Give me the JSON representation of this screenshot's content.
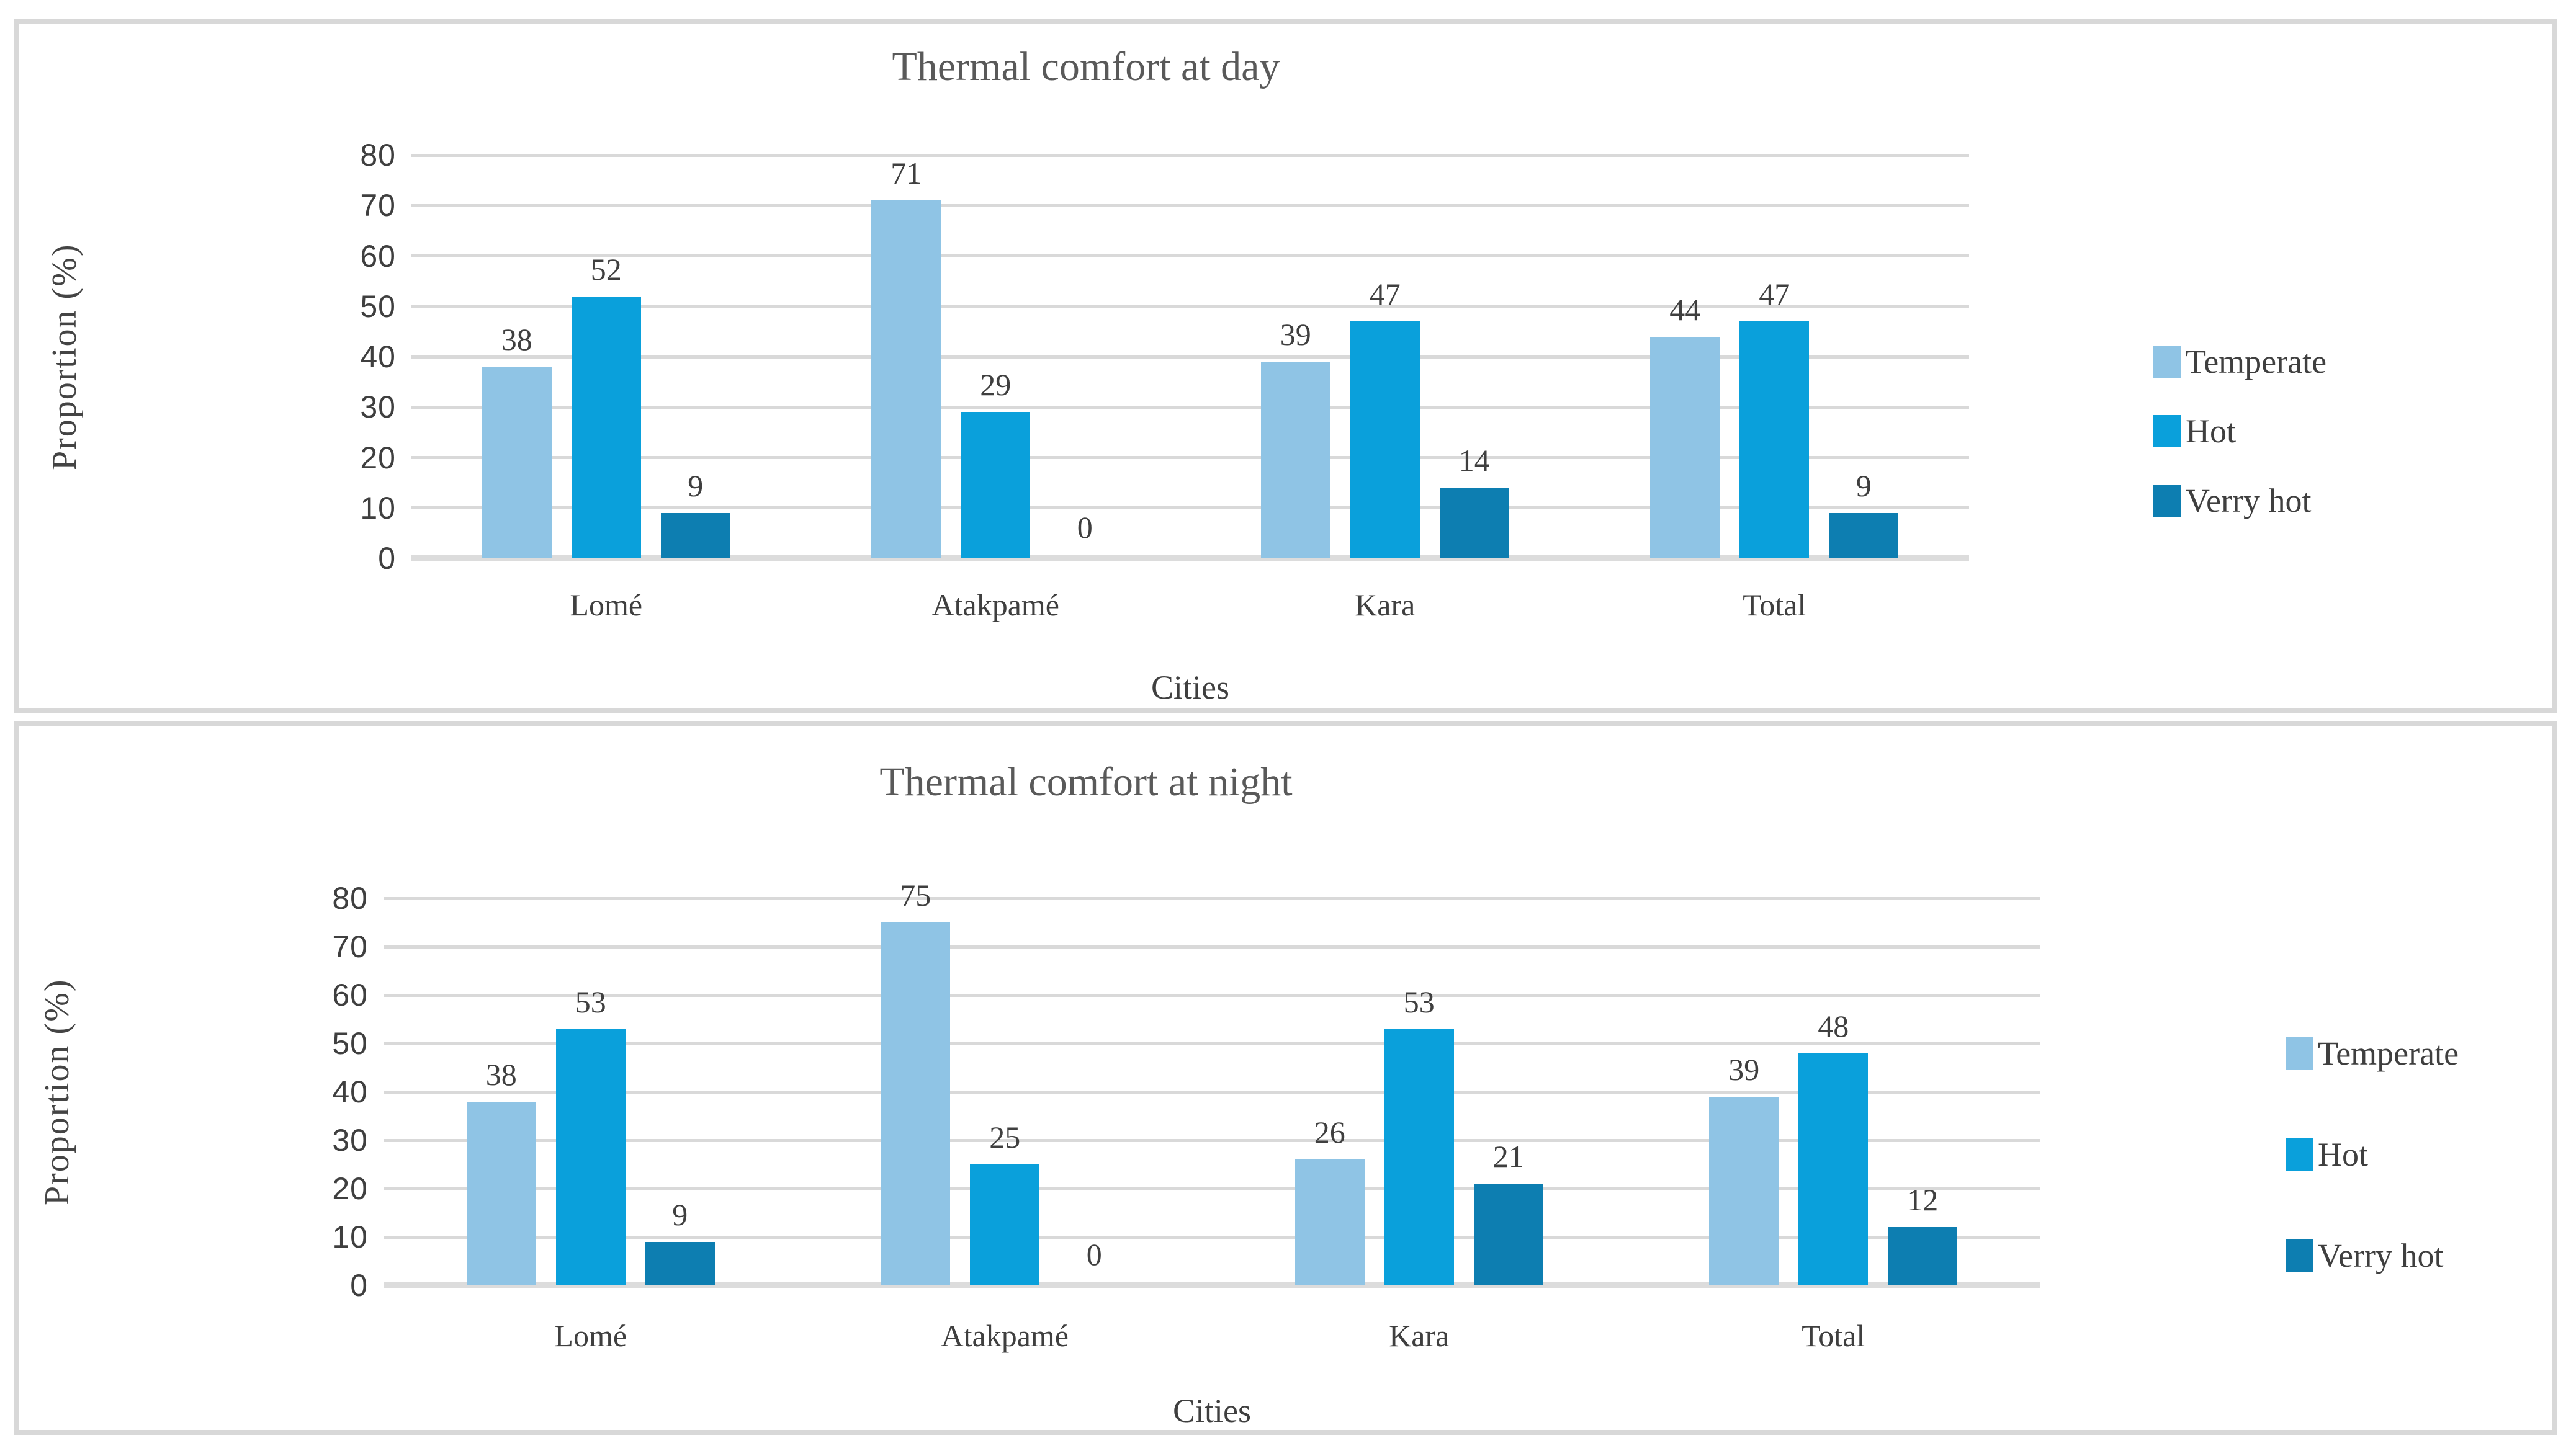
{
  "figure": {
    "background": "#FFFFFF",
    "panel_border_color": "#D8D8D8"
  },
  "style": {
    "grid_color": "#D9D9D9",
    "axis_line_color": "#DCDCDC",
    "title_color": "#595959",
    "text_color": "#3F3F3F"
  },
  "chart_data": [
    {
      "type": "bar",
      "title": "Thermal comfort at day",
      "xlabel": "Cities",
      "ylabel": "Proportion (%)",
      "categories": [
        "Lomé",
        "Atakpamé",
        "Kara",
        "Total"
      ],
      "series": [
        {
          "name": "Temperate",
          "color": "#8FC4E5",
          "values": [
            38,
            71,
            39,
            44
          ]
        },
        {
          "name": "Hot",
          "color": "#0AA0DB",
          "values": [
            52,
            29,
            47,
            47
          ]
        },
        {
          "name": "Verry hot",
          "color": "#0D7EB1",
          "values": [
            9,
            0,
            14,
            9
          ]
        }
      ],
      "ylim": [
        0,
        80
      ],
      "yticks": [
        0,
        10,
        20,
        30,
        40,
        50,
        60,
        70,
        80
      ],
      "grid": true,
      "legend_position": "right"
    },
    {
      "type": "bar",
      "title": "Thermal comfort at night",
      "xlabel": "Cities",
      "ylabel": "Proportion (%)",
      "categories": [
        "Lomé",
        "Atakpamé",
        "Kara",
        "Total"
      ],
      "series": [
        {
          "name": "Temperate",
          "color": "#8FC4E5",
          "values": [
            38,
            75,
            26,
            39
          ]
        },
        {
          "name": "Hot",
          "color": "#0AA0DB",
          "values": [
            53,
            25,
            53,
            48
          ]
        },
        {
          "name": "Verry hot",
          "color": "#0D7EB1",
          "values": [
            9,
            0,
            21,
            12
          ]
        }
      ],
      "ylim": [
        0,
        80
      ],
      "yticks": [
        0,
        10,
        20,
        30,
        40,
        50,
        60,
        70,
        80
      ],
      "grid": true,
      "legend_position": "right"
    }
  ]
}
